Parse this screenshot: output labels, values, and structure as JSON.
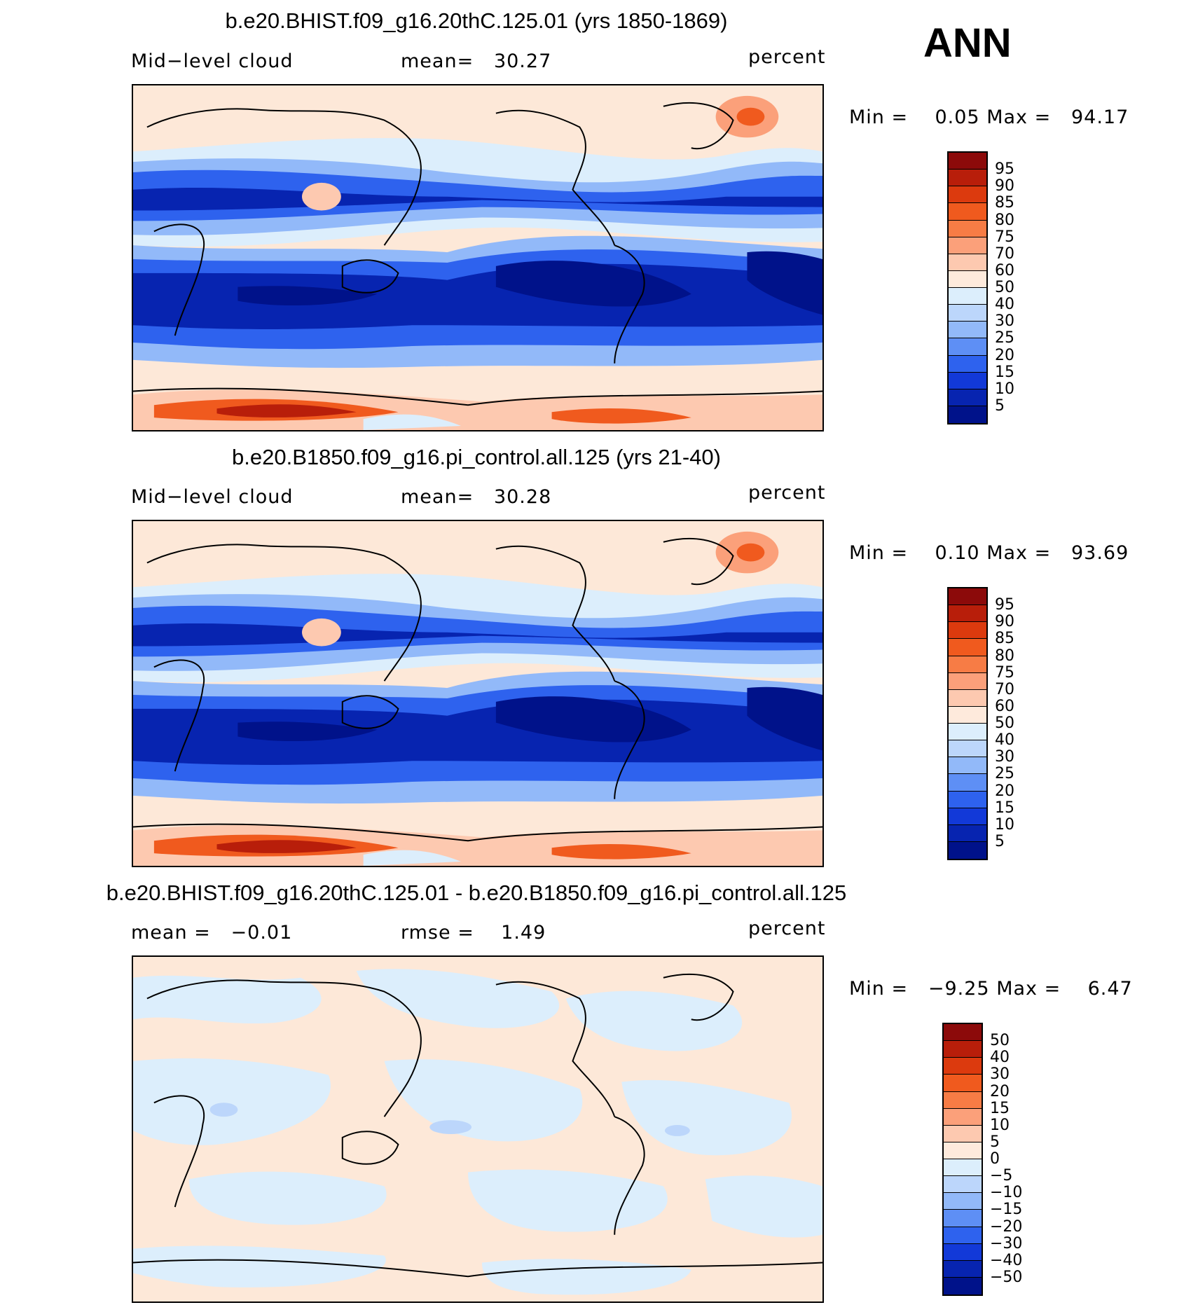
{
  "season": "ANN",
  "panels": [
    {
      "title": "b.e20.BHIST.f09_g16.20thC.125.01 (yrs 1850-1869)",
      "left_label": "Mid−level cloud",
      "mid_label": "mean=",
      "mid_value": "30.27",
      "units": "percent",
      "minmax": {
        "min_label": "Min =",
        "min": "0.05",
        "max_label": "Max =",
        "max": "94.17"
      },
      "colorbar": {
        "labels": [
          "95",
          "90",
          "85",
          "80",
          "75",
          "70",
          "60",
          "50",
          "40",
          "30",
          "25",
          "20",
          "15",
          "10",
          "5"
        ],
        "colors": [
          "#8c0a0a",
          "#b81e0a",
          "#dc3a0e",
          "#f05a1e",
          "#f77c45",
          "#fba07a",
          "#fdc9b0",
          "#feeadc",
          "#dceefc",
          "#bcd6fb",
          "#92b9f9",
          "#5e8ff5",
          "#2e62ee",
          "#1239d8",
          "#0724b0",
          "#00128a"
        ]
      }
    },
    {
      "title": "b.e20.B1850.f09_g16.pi_control.all.125 (yrs 21-40)",
      "left_label": "Mid−level cloud",
      "mid_label": "mean=",
      "mid_value": "30.28",
      "units": "percent",
      "minmax": {
        "min_label": "Min =",
        "min": "0.10",
        "max_label": "Max =",
        "max": "93.69"
      },
      "colorbar": {
        "labels": [
          "95",
          "90",
          "85",
          "80",
          "75",
          "70",
          "60",
          "50",
          "40",
          "30",
          "25",
          "20",
          "15",
          "10",
          "5"
        ],
        "colors": [
          "#8c0a0a",
          "#b81e0a",
          "#dc3a0e",
          "#f05a1e",
          "#f77c45",
          "#fba07a",
          "#fdc9b0",
          "#feeadc",
          "#dceefc",
          "#bcd6fb",
          "#92b9f9",
          "#5e8ff5",
          "#2e62ee",
          "#1239d8",
          "#0724b0",
          "#00128a"
        ]
      }
    },
    {
      "title": "b.e20.BHIST.f09_g16.20thC.125.01 - b.e20.B1850.f09_g16.pi_control.all.125",
      "left_label": "mean =",
      "left_value": "−0.01",
      "mid_label": "rmse =",
      "mid_value": "1.49",
      "units": "percent",
      "minmax": {
        "min_label": "Min =",
        "min": "−9.25",
        "max_label": "Max =",
        "max": "6.47"
      },
      "colorbar": {
        "labels": [
          "50",
          "40",
          "30",
          "20",
          "15",
          "10",
          "5",
          "0",
          "−5",
          "−10",
          "−15",
          "−20",
          "−30",
          "−40",
          "−50"
        ],
        "colors": [
          "#8c0a0a",
          "#b81e0a",
          "#dc3a0e",
          "#f05a1e",
          "#f77c45",
          "#fba07a",
          "#fdc9b0",
          "#feeadc",
          "#dceefc",
          "#bcd6fb",
          "#92b9f9",
          "#5e8ff5",
          "#2e62ee",
          "#1239d8",
          "#0724b0",
          "#00128a"
        ]
      }
    }
  ]
}
